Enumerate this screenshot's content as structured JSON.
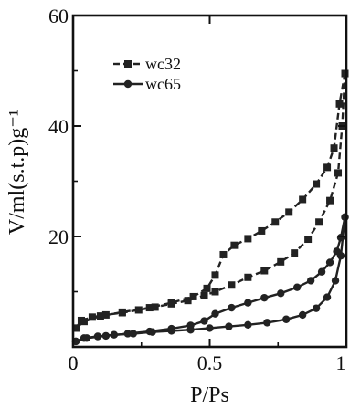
{
  "chart_data": {
    "type": "line",
    "title": "",
    "xlabel": "P/Ps",
    "ylabel": "V/ml(s.t.p)g⁻¹",
    "xlim": [
      0,
      1
    ],
    "ylim": [
      0,
      60
    ],
    "xticks": [
      0,
      0.5,
      1
    ],
    "xtick_labels": [
      "0",
      "0.5",
      "1"
    ],
    "yticks": [
      20,
      40,
      60
    ],
    "ytick_labels": [
      "20",
      "40",
      "60"
    ],
    "grid": false,
    "legend_position": "top-left",
    "series": [
      {
        "name": "wc32",
        "marker": "square",
        "line_style": "dashed",
        "color": "#222222",
        "branches": [
          {
            "branch": "adsorption",
            "points": [
              [
                0.01,
                3.4
              ],
              [
                0.03,
                4.8
              ],
              [
                0.07,
                5.4
              ],
              [
                0.12,
                5.8
              ],
              [
                0.18,
                6.2
              ],
              [
                0.24,
                6.7
              ],
              [
                0.3,
                7.2
              ],
              [
                0.36,
                7.8
              ],
              [
                0.42,
                8.4
              ],
              [
                0.48,
                9.3
              ],
              [
                0.52,
                10.0
              ],
              [
                0.58,
                11.2
              ],
              [
                0.64,
                12.6
              ],
              [
                0.7,
                13.8
              ],
              [
                0.76,
                15.4
              ],
              [
                0.81,
                17.0
              ],
              [
                0.86,
                19.5
              ],
              [
                0.9,
                22.6
              ],
              [
                0.94,
                26.5
              ],
              [
                0.97,
                31.5
              ],
              [
                0.985,
                40.0
              ],
              [
                0.995,
                49.5
              ]
            ]
          },
          {
            "branch": "desorption",
            "points": [
              [
                0.995,
                49.5
              ],
              [
                0.975,
                44.0
              ],
              [
                0.955,
                36.0
              ],
              [
                0.93,
                32.5
              ],
              [
                0.89,
                29.5
              ],
              [
                0.84,
                26.7
              ],
              [
                0.79,
                24.4
              ],
              [
                0.74,
                22.6
              ],
              [
                0.69,
                21.0
              ],
              [
                0.64,
                19.6
              ],
              [
                0.59,
                18.4
              ],
              [
                0.55,
                16.7
              ],
              [
                0.52,
                13.0
              ],
              [
                0.49,
                10.6
              ],
              [
                0.44,
                9.1
              ],
              [
                0.36,
                8.0
              ],
              [
                0.28,
                7.1
              ],
              [
                0.18,
                6.3
              ],
              [
                0.1,
                5.6
              ],
              [
                0.04,
                4.6
              ],
              [
                0.01,
                3.4
              ]
            ]
          }
        ]
      },
      {
        "name": "wc65",
        "marker": "circle",
        "line_style": "solid",
        "color": "#222222",
        "branches": [
          {
            "branch": "adsorption",
            "points": [
              [
                0.01,
                1.0
              ],
              [
                0.04,
                1.6
              ],
              [
                0.09,
                1.9
              ],
              [
                0.15,
                2.2
              ],
              [
                0.22,
                2.4
              ],
              [
                0.29,
                2.7
              ],
              [
                0.36,
                2.9
              ],
              [
                0.43,
                3.1
              ],
              [
                0.5,
                3.4
              ],
              [
                0.57,
                3.7
              ],
              [
                0.64,
                4.0
              ],
              [
                0.71,
                4.4
              ],
              [
                0.78,
                5.0
              ],
              [
                0.84,
                5.8
              ],
              [
                0.89,
                7.0
              ],
              [
                0.93,
                9.0
              ],
              [
                0.96,
                12.0
              ],
              [
                0.98,
                16.5
              ],
              [
                0.995,
                23.5
              ]
            ]
          },
          {
            "branch": "desorption",
            "points": [
              [
                0.995,
                23.5
              ],
              [
                0.98,
                19.8
              ],
              [
                0.965,
                17.3
              ],
              [
                0.94,
                15.3
              ],
              [
                0.91,
                13.6
              ],
              [
                0.87,
                12.0
              ],
              [
                0.82,
                10.8
              ],
              [
                0.76,
                9.7
              ],
              [
                0.7,
                8.9
              ],
              [
                0.64,
                8.0
              ],
              [
                0.58,
                7.1
              ],
              [
                0.52,
                6.0
              ],
              [
                0.48,
                4.7
              ],
              [
                0.43,
                3.9
              ],
              [
                0.36,
                3.3
              ],
              [
                0.28,
                2.8
              ],
              [
                0.2,
                2.4
              ],
              [
                0.12,
                2.0
              ],
              [
                0.05,
                1.6
              ],
              [
                0.01,
                1.0
              ]
            ]
          }
        ]
      }
    ]
  }
}
